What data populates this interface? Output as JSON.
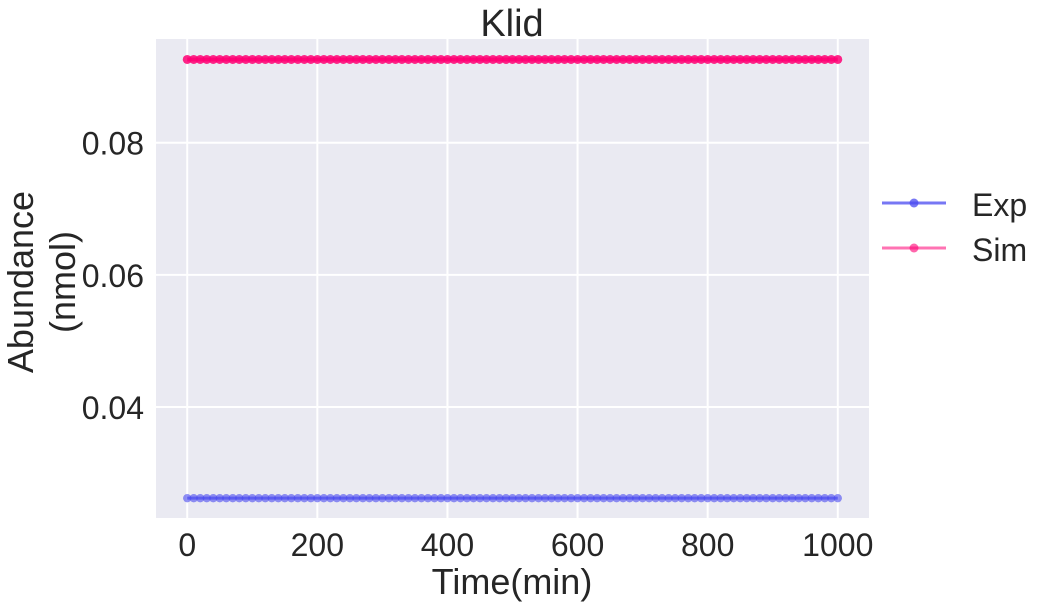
{
  "chart_data": {
    "type": "line",
    "title": "Klid",
    "xlabel": "Time(min)",
    "ylabel_lines": [
      "Abundance",
      "(nmol)"
    ],
    "xlim": [
      -48,
      1048
    ],
    "ylim": [
      0.0232,
      0.0957
    ],
    "x_ticks": [
      0,
      200,
      400,
      600,
      800,
      1000
    ],
    "x_tick_labels": [
      "0",
      "200",
      "400",
      "600",
      "800",
      "1000"
    ],
    "y_ticks": [
      0.04,
      0.06,
      0.08
    ],
    "y_tick_labels": [
      "0.04",
      "0.06",
      "0.08"
    ],
    "grid": true,
    "legend_position": "outside-right",
    "x": [
      0,
      10,
      20,
      30,
      40,
      50,
      60,
      70,
      80,
      90,
      100,
      110,
      120,
      130,
      140,
      150,
      160,
      170,
      180,
      190,
      200,
      210,
      220,
      230,
      240,
      250,
      260,
      270,
      280,
      290,
      300,
      310,
      320,
      330,
      340,
      350,
      360,
      370,
      380,
      390,
      400,
      410,
      420,
      430,
      440,
      450,
      460,
      470,
      480,
      490,
      500,
      510,
      520,
      530,
      540,
      550,
      560,
      570,
      580,
      590,
      600,
      610,
      620,
      630,
      640,
      650,
      660,
      670,
      680,
      690,
      700,
      710,
      720,
      730,
      740,
      750,
      760,
      770,
      780,
      790,
      800,
      810,
      820,
      830,
      840,
      850,
      860,
      870,
      880,
      890,
      900,
      910,
      920,
      930,
      940,
      950,
      960,
      970,
      980,
      990,
      1000
    ],
    "series": [
      {
        "name": "Exp",
        "color": "#4a4af0",
        "constant_value": 0.0262
      },
      {
        "name": "Sim",
        "color": "#ff0074",
        "constant_value": 0.0926
      }
    ]
  }
}
